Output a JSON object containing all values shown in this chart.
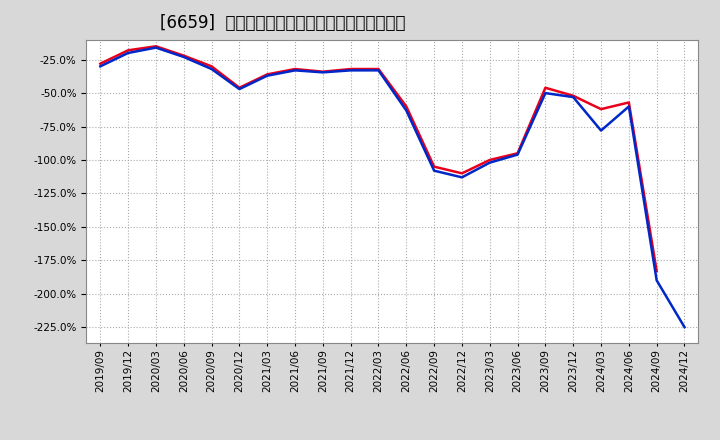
{
  "title": "[6659]  有利子負債キャッシュフロー比率の推移",
  "x_labels": [
    "2019/09",
    "2019/12",
    "2020/03",
    "2020/06",
    "2020/09",
    "2020/12",
    "2021/03",
    "2021/06",
    "2021/09",
    "2021/12",
    "2022/03",
    "2022/06",
    "2022/09",
    "2022/12",
    "2023/03",
    "2023/06",
    "2023/09",
    "2023/12",
    "2024/03",
    "2024/06",
    "2024/09",
    "2024/12"
  ],
  "operating_cf": [
    -28.0,
    -18.0,
    -15.0,
    -22.0,
    -30.0,
    -46.0,
    -36.0,
    -32.0,
    -34.0,
    -32.0,
    -32.0,
    -60.0,
    -105.0,
    -110.0,
    -100.0,
    -95.0,
    -46.0,
    -52.0,
    -62.0,
    -57.0,
    -183.0,
    null
  ],
  "free_cf": [
    -30.0,
    -20.0,
    -16.0,
    -23.0,
    -32.0,
    -47.0,
    -37.0,
    -33.0,
    -34.5,
    -33.0,
    -33.0,
    -63.0,
    -108.0,
    -113.0,
    -102.0,
    -96.0,
    -50.0,
    -53.0,
    -78.0,
    -60.0,
    -190.0,
    -225.0
  ],
  "ylim_min": -237.0,
  "ylim_max": -10.0,
  "yticks": [
    -25.0,
    -50.0,
    -75.0,
    -100.0,
    -125.0,
    -150.0,
    -175.0,
    -200.0,
    -225.0
  ],
  "color_op": "#e8001c",
  "color_free": "#0028c8",
  "bg_color": "#d8d8d8",
  "plot_bg": "#ffffff",
  "grid_color": "#aaaaaa",
  "title_fontsize": 12,
  "tick_fontsize": 7.5,
  "legend_fontsize": 9
}
